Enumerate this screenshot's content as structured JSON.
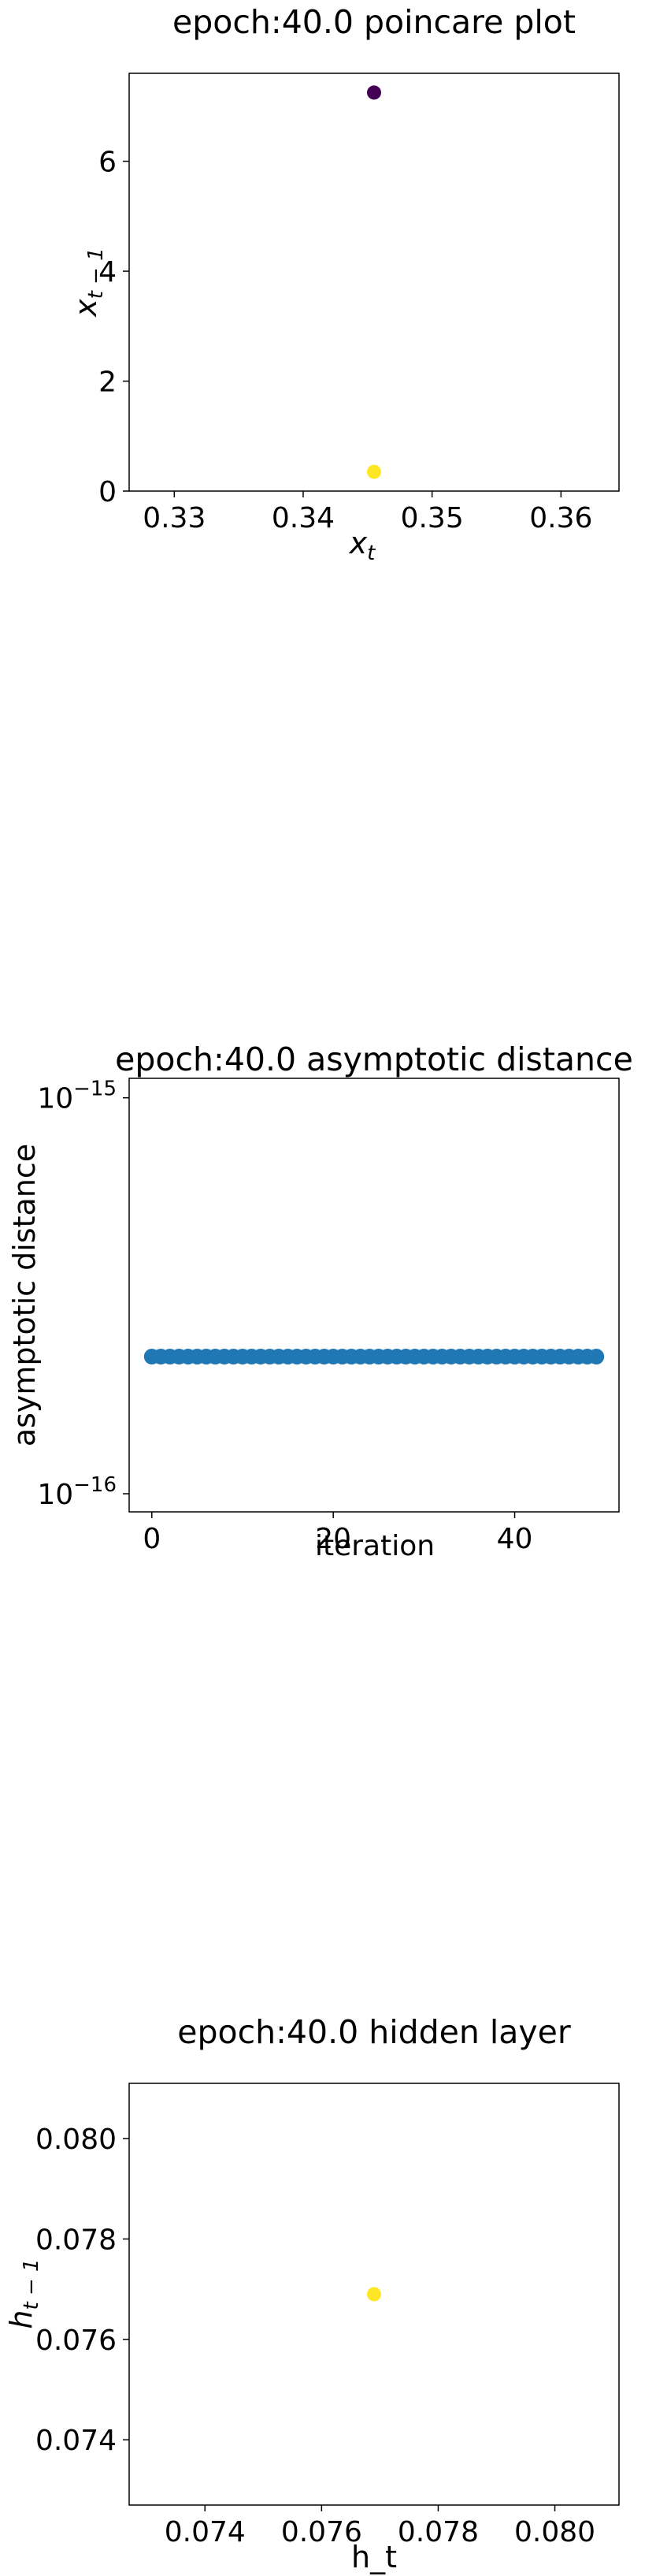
{
  "colors": {
    "viridis_dark": "#440154",
    "viridis_yellow": "#fde725",
    "tab_blue": "#1f77b4",
    "axis": "#000000",
    "background": "#ffffff"
  },
  "chart_data": [
    {
      "id": "poincare",
      "type": "scatter",
      "title": "epoch:40.0 poincare plot",
      "xlabel": "x",
      "xlabel_sub": "t",
      "ylabel": "x",
      "ylabel_sub": "t − 1",
      "xlim": [
        0.3265,
        0.3645
      ],
      "ylim": [
        0,
        7.6
      ],
      "xticks": [
        0.33,
        0.34,
        0.35,
        0.36
      ],
      "xtick_labels": [
        "0.33",
        "0.34",
        "0.35",
        "0.36"
      ],
      "yticks": [
        0,
        2,
        4,
        6
      ],
      "ytick_labels": [
        "0",
        "2",
        "4",
        "6"
      ],
      "grid": false,
      "points": [
        {
          "x": 0.3455,
          "y": 7.25,
          "color": "#440154"
        },
        {
          "x": 0.3455,
          "y": 0.35,
          "color": "#fde725"
        }
      ]
    },
    {
      "id": "asymptotic",
      "type": "scatter",
      "title": "epoch:40.0 asymptotic distance",
      "xlabel": "iteration",
      "ylabel": "asymptotic distance",
      "yscale": "log",
      "xlim": [
        -2.5,
        51.5
      ],
      "ylim": [
        9e-17,
        1.12e-15
      ],
      "xticks": [
        0,
        20,
        40
      ],
      "xtick_labels": [
        "0",
        "20",
        "40"
      ],
      "yticks": [
        1e-16,
        1e-15
      ],
      "ytick_labels": [
        {
          "base": "10",
          "exp": "−16"
        },
        {
          "base": "10",
          "exp": "−15"
        }
      ],
      "grid": false,
      "series": [
        {
          "color": "#1f77b4",
          "x": [
            0,
            1,
            2,
            3,
            4,
            5,
            6,
            7,
            8,
            9,
            10,
            11,
            12,
            13,
            14,
            15,
            16,
            17,
            18,
            19,
            20,
            21,
            22,
            23,
            24,
            25,
            26,
            27,
            28,
            29,
            30,
            31,
            32,
            33,
            34,
            35,
            36,
            37,
            38,
            39,
            40,
            41,
            42,
            43,
            44,
            45,
            46,
            47,
            48,
            49
          ],
          "y": [
            2.22e-16,
            2.22e-16,
            2.22e-16,
            2.22e-16,
            2.22e-16,
            2.22e-16,
            2.22e-16,
            2.22e-16,
            2.22e-16,
            2.22e-16,
            2.22e-16,
            2.22e-16,
            2.22e-16,
            2.22e-16,
            2.22e-16,
            2.22e-16,
            2.22e-16,
            2.22e-16,
            2.22e-16,
            2.22e-16,
            2.22e-16,
            2.22e-16,
            2.22e-16,
            2.22e-16,
            2.22e-16,
            2.22e-16,
            2.22e-16,
            2.22e-16,
            2.22e-16,
            2.22e-16,
            2.22e-16,
            2.22e-16,
            2.22e-16,
            2.22e-16,
            2.22e-16,
            2.22e-16,
            2.22e-16,
            2.22e-16,
            2.22e-16,
            2.22e-16,
            2.22e-16,
            2.22e-16,
            2.22e-16,
            2.22e-16,
            2.22e-16,
            2.22e-16,
            2.22e-16,
            2.22e-16,
            2.22e-16,
            2.22e-16
          ]
        }
      ]
    },
    {
      "id": "hidden",
      "type": "scatter",
      "title": "epoch:40.0 hidden layer",
      "xlabel": "h_t",
      "ylabel": "h",
      "ylabel_sub": "t − 1",
      "xlim": [
        0.0727,
        0.0811
      ],
      "ylim": [
        0.0727,
        0.0811
      ],
      "xticks": [
        0.074,
        0.076,
        0.078,
        0.08
      ],
      "xtick_labels": [
        "0.074",
        "0.076",
        "0.078",
        "0.080"
      ],
      "yticks": [
        0.074,
        0.076,
        0.078,
        0.08
      ],
      "ytick_labels": [
        "0.074",
        "0.076",
        "0.078",
        "0.080"
      ],
      "grid": false,
      "points": [
        {
          "x": 0.0769,
          "y": 0.0769,
          "color": "#fde725"
        }
      ]
    }
  ]
}
